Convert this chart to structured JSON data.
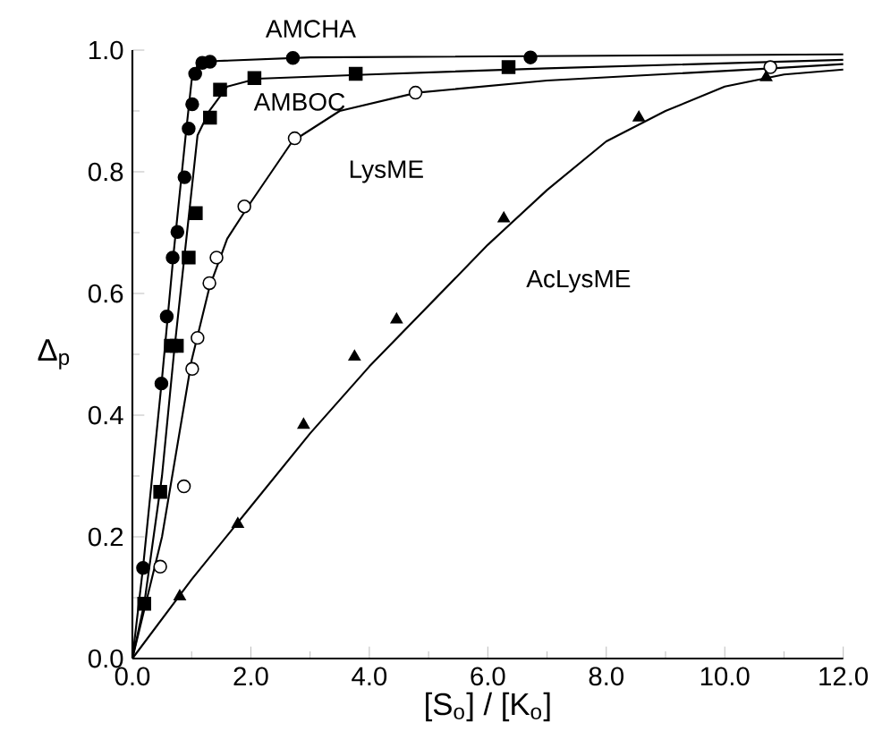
{
  "chart_data": {
    "type": "line",
    "xlabel": "[S$_{o}$] / [K$_{o}$]",
    "ylabel": "Δ$_{p}$",
    "xlim": [
      0,
      12
    ],
    "ylim": [
      0,
      1.0
    ],
    "xticks": [
      {
        "value": 0,
        "label": "0.0"
      },
      {
        "value": 2,
        "label": "2.0"
      },
      {
        "value": 4,
        "label": "4.0"
      },
      {
        "value": 6,
        "label": "6.0"
      },
      {
        "value": 8,
        "label": "8.0"
      },
      {
        "value": 10,
        "label": "10.0"
      },
      {
        "value": 12,
        "label": "12.0"
      }
    ],
    "yticks": [
      {
        "value": 0,
        "label": "0.0"
      },
      {
        "value": 0.2,
        "label": "0.2"
      },
      {
        "value": 0.4,
        "label": "0.4"
      },
      {
        "value": 0.6,
        "label": "0.6"
      },
      {
        "value": 0.8,
        "label": "0.8"
      },
      {
        "value": 1.0,
        "label": "1.0"
      }
    ],
    "grid": false,
    "legend": false,
    "series": [
      {
        "name": "AMCHA",
        "type": "scatter",
        "marker": "circle",
        "color": "#000000",
        "x": [
          0.18,
          0.49,
          0.58,
          0.68,
          0.76,
          0.88,
          0.95,
          1.01,
          1.06,
          1.18,
          1.31,
          2.71,
          6.72
        ],
        "values": [
          0.149,
          0.452,
          0.562,
          0.659,
          0.701,
          0.791,
          0.871,
          0.911,
          0.961,
          0.979,
          0.981,
          0.987,
          0.988
        ]
      },
      {
        "name": "AMBOC",
        "type": "scatter",
        "marker": "square",
        "color": "#000000",
        "x": [
          0.2,
          0.47,
          0.65,
          0.75,
          0.95,
          1.07,
          1.31,
          1.48,
          2.06,
          3.77,
          6.35
        ],
        "values": [
          0.09,
          0.274,
          0.514,
          0.514,
          0.659,
          0.732,
          0.889,
          0.935,
          0.954,
          0.961,
          0.972
        ]
      },
      {
        "name": "LysME",
        "type": "scatter",
        "marker": "circle",
        "color": "#ffffff",
        "x": [
          0.47,
          0.87,
          1.01,
          1.1,
          1.3,
          1.42,
          1.89,
          2.74,
          4.78,
          10.77
        ],
        "values": [
          0.151,
          0.283,
          0.476,
          0.527,
          0.617,
          0.659,
          0.743,
          0.855,
          0.93,
          0.972
        ]
      },
      {
        "name": "AcLysME",
        "type": "scatter",
        "marker": "triangle",
        "color": "#000000",
        "x": [
          0.8,
          1.78,
          2.89,
          3.75,
          4.46,
          6.27,
          8.55,
          10.7
        ],
        "values": [
          0.102,
          0.221,
          0.384,
          0.496,
          0.557,
          0.723,
          0.889,
          0.955
        ]
      },
      {
        "marker": "none",
        "color": "#000000",
        "x": [
          0,
          0.18,
          0.5,
          0.7,
          0.9,
          1.0,
          1.1,
          1.4,
          3,
          12
        ],
        "values": [
          0,
          0.15,
          0.46,
          0.67,
          0.86,
          0.95,
          0.975,
          0.982,
          0.988,
          0.993
        ]
      },
      {
        "marker": "none",
        "color": "#000000",
        "x": [
          0,
          0.2,
          0.5,
          0.7,
          0.9,
          1.1,
          1.3,
          1.6,
          2.1,
          4,
          7,
          12
        ],
        "values": [
          0,
          0.09,
          0.3,
          0.5,
          0.68,
          0.86,
          0.9,
          0.94,
          0.953,
          0.96,
          0.97,
          0.984
        ]
      },
      {
        "marker": "none",
        "color": "#000000",
        "x": [
          0,
          0.5,
          1.0,
          1.3,
          1.6,
          2,
          2.7,
          3.5,
          4.8,
          7,
          10.8,
          12
        ],
        "values": [
          0,
          0.2,
          0.49,
          0.61,
          0.69,
          0.75,
          0.85,
          0.9,
          0.93,
          0.95,
          0.97,
          0.977
        ]
      },
      {
        "marker": "none",
        "color": "#000000",
        "x": [
          0,
          1,
          2,
          3,
          4,
          5,
          6,
          7,
          8,
          9,
          10,
          11,
          12
        ],
        "values": [
          0,
          0.13,
          0.25,
          0.37,
          0.48,
          0.58,
          0.68,
          0.77,
          0.85,
          0.9,
          0.94,
          0.96,
          0.968
        ]
      }
    ]
  }
}
